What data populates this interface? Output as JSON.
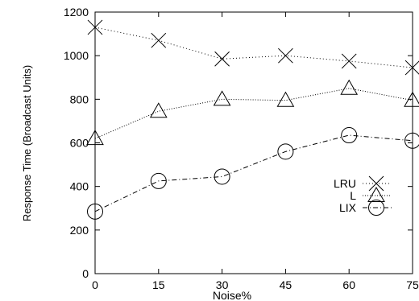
{
  "chart_data": {
    "type": "line",
    "title": "",
    "xlabel": "Noise%",
    "ylabel": "Response Time (Broadcast Units)",
    "x": [
      0,
      15,
      30,
      45,
      60,
      75
    ],
    "xticks": [
      "0",
      "15",
      "30",
      "45",
      "60",
      "75"
    ],
    "yticks": [
      "0",
      "200",
      "400",
      "600",
      "800",
      "1000",
      "1200"
    ],
    "xlim": [
      0,
      75
    ],
    "ylim": [
      0,
      1200
    ],
    "grid": false,
    "legend_position": "middle-right",
    "series": [
      {
        "name": "LRU",
        "marker": "x",
        "dash": "1,3",
        "values": [
          1130,
          1070,
          985,
          1000,
          975,
          945
        ]
      },
      {
        "name": "L",
        "marker": "triangle",
        "dash": "1,2",
        "values": [
          620,
          745,
          800,
          795,
          850,
          795
        ]
      },
      {
        "name": "LIX",
        "marker": "circle",
        "dash": "6,3,1,3",
        "values": [
          285,
          425,
          445,
          560,
          635,
          610
        ]
      }
    ]
  }
}
